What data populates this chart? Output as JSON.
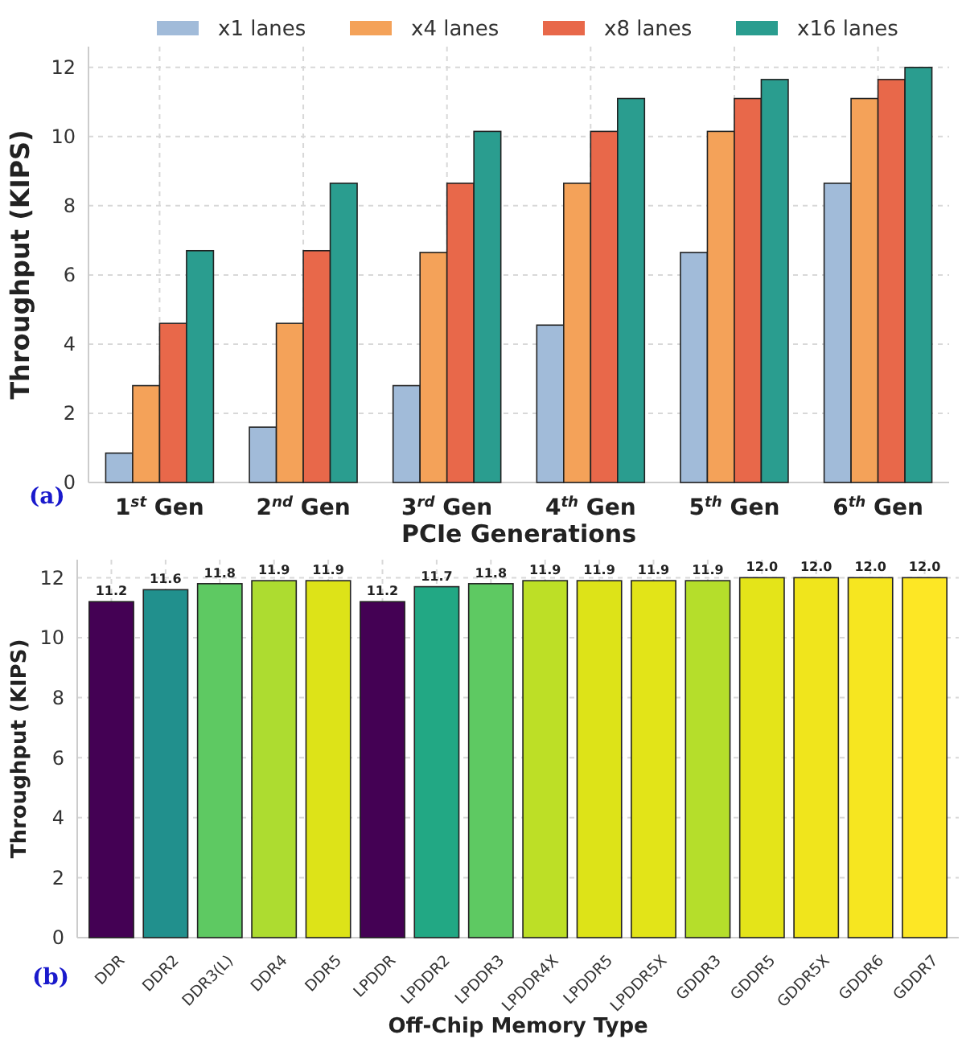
{
  "chart_data": [
    {
      "type": "bar",
      "xlabel": "PCIe Generations",
      "ylabel": "Throughput (KIPS)",
      "categories": [
        "1$^{st}$ Gen",
        "2$^{nd}$ Gen",
        "3$^{rd}$ Gen",
        "4$^{th}$ Gen",
        "5$^{th}$ Gen",
        "6$^{th}$ Gen"
      ],
      "series": [
        {
          "name": "x1 lanes",
          "color": "#a1bbd9",
          "values": [
            0.85,
            1.6,
            2.8,
            4.55,
            6.65,
            8.65
          ]
        },
        {
          "name": "x4 lanes",
          "color": "#f4a259",
          "values": [
            2.8,
            4.6,
            6.65,
            8.65,
            10.15,
            11.1
          ]
        },
        {
          "name": "x8 lanes",
          "color": "#e8684a",
          "values": [
            4.6,
            6.7,
            8.65,
            10.15,
            11.1,
            11.65
          ]
        },
        {
          "name": "x16 lanes",
          "color": "#2a9d8f",
          "values": [
            6.7,
            8.65,
            10.15,
            11.1,
            11.65,
            12.0
          ]
        }
      ],
      "ylim": [
        0,
        12.6
      ],
      "yticks": [
        0,
        2,
        4,
        6,
        8,
        10,
        12
      ],
      "grid": true,
      "legend": "top",
      "annotations": [
        "(a)"
      ]
    },
    {
      "type": "bar",
      "xlabel": "Off-Chip Memory Type",
      "ylabel": "Throughput (KIPS)",
      "categories": [
        "DDR",
        "DDR2",
        "DDR3(L)",
        "DDR4",
        "DDR5",
        "LPDDR",
        "LPDDR2",
        "LPDDR3",
        "LPDDR4X",
        "LPDDR5",
        "LPDDR5X",
        "GDDR3",
        "GDDR5",
        "GDDR5X",
        "GDDR6",
        "GDDR7"
      ],
      "values": [
        11.2,
        11.6,
        11.8,
        11.9,
        11.9,
        11.2,
        11.7,
        11.8,
        11.9,
        11.9,
        11.9,
        11.9,
        12.0,
        12.0,
        12.0,
        12.0
      ],
      "value_labels": [
        "11.2",
        "11.6",
        "11.8",
        "11.9",
        "11.9",
        "11.2",
        "11.7",
        "11.8",
        "11.9",
        "11.9",
        "11.9",
        "11.9",
        "12.0",
        "12.0",
        "12.0",
        "12.0"
      ],
      "colors": [
        "#440154",
        "#21908d",
        "#5ec962",
        "#addc30",
        "#dde318",
        "#440154",
        "#22a884",
        "#5ec962",
        "#bddf26",
        "#dde318",
        "#e2e418",
        "#b5de2b",
        "#e4e419",
        "#f0e51c",
        "#f6e620",
        "#fde725"
      ],
      "ylim": [
        0,
        12.6
      ],
      "yticks": [
        0,
        2,
        4,
        6,
        8,
        10,
        12
      ],
      "grid": true,
      "annotations": [
        "(b)"
      ]
    }
  ]
}
